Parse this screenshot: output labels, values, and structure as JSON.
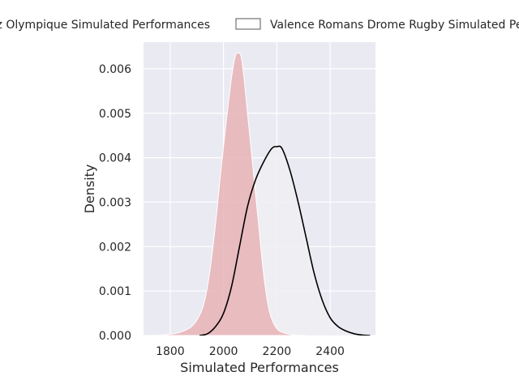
{
  "chart_data": {
    "type": "area",
    "title": "",
    "xlabel": "Simulated Performances",
    "ylabel": "Density",
    "xlim": [
      1700,
      2570
    ],
    "ylim": [
      0,
      0.0066
    ],
    "x_ticks": [
      1800,
      2000,
      2200,
      2400
    ],
    "y_ticks": [
      0.0,
      0.001,
      0.002,
      0.003,
      0.004,
      0.005,
      0.006
    ],
    "grid": true,
    "legend_position": "top",
    "series": [
      {
        "name": "Biarritz Olympique Simulated Performances",
        "style": "filled",
        "color": "#e8b3b6",
        "edge_color": "#ffffff",
        "x": [
          1740,
          1790,
          1840,
          1880,
          1910,
          1930,
          1950,
          1970,
          1990,
          2010,
          2030,
          2045,
          2055,
          2065,
          2075,
          2090,
          2110,
          2130,
          2150,
          2170,
          2190,
          2210,
          2240,
          2270,
          2310
        ],
        "y": [
          0.0,
          2e-05,
          8e-05,
          0.0002,
          0.00045,
          0.0008,
          0.0015,
          0.0025,
          0.0037,
          0.0048,
          0.0058,
          0.0063,
          0.00635,
          0.0063,
          0.0059,
          0.005,
          0.0038,
          0.0026,
          0.0014,
          0.0006,
          0.00025,
          0.0001,
          4e-05,
          1e-05,
          0.0
        ]
      },
      {
        "name": "Valence Romans Drome Rugby Simulated Performances",
        "style": "line",
        "color": "#000000",
        "fill": "#f0eef3",
        "x": [
          1910,
          1940,
          1970,
          2000,
          2030,
          2060,
          2090,
          2120,
          2150,
          2180,
          2200,
          2220,
          2250,
          2280,
          2310,
          2340,
          2370,
          2400,
          2430,
          2460,
          2490,
          2520,
          2550
        ],
        "y": [
          0.0,
          4e-05,
          0.0002,
          0.0005,
          0.0011,
          0.002,
          0.0029,
          0.0035,
          0.0039,
          0.0042,
          0.00425,
          0.0042,
          0.0037,
          0.003,
          0.0022,
          0.0014,
          0.0008,
          0.0004,
          0.0002,
          0.0001,
          4e-05,
          1e-05,
          0.0
        ]
      }
    ]
  }
}
